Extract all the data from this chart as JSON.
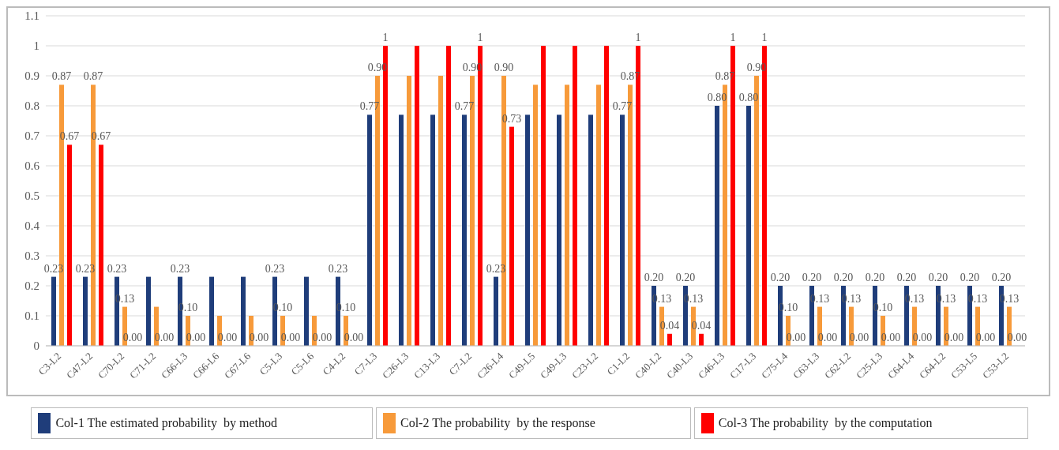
{
  "chart_data": {
    "type": "bar",
    "categories": [
      "C3-L2",
      "C47-L2",
      "C70-L2",
      "C71-L2",
      "C66-L3",
      "C66-L6",
      "C67-L6",
      "C5-L3",
      "C5-L6",
      "C4-L2",
      "C7-L3",
      "C26-L3",
      "C13-L3",
      "C7-L2",
      "C26-L4",
      "C49-L5",
      "C49-L3",
      "C23-L2",
      "C1-L2",
      "C40-L2",
      "C40-L3",
      "C46-L3",
      "C17-L3",
      "C75-L4",
      "C63-L3",
      "C62-L2",
      "C25-L3",
      "C64-L4",
      "C64-L2",
      "C53-L5",
      "C53-L2"
    ],
    "series": [
      {
        "name": "Col-1 The estimated probability  by method",
        "color": "#1f3d7a",
        "values": [
          0.23,
          0.23,
          0.23,
          0.23,
          0.23,
          0.23,
          0.23,
          0.23,
          0.23,
          0.23,
          0.77,
          0.77,
          0.77,
          0.77,
          0.23,
          0.77,
          0.77,
          0.77,
          0.77,
          0.2,
          0.2,
          0.8,
          0.8,
          0.2,
          0.2,
          0.2,
          0.2,
          0.2,
          0.2,
          0.2,
          0.2
        ],
        "value_labels": [
          "0.23",
          "0.23",
          "0.23",
          null,
          "0.23",
          null,
          null,
          "0.23",
          null,
          "0.23",
          "0.77",
          null,
          null,
          "0.77",
          "0.23",
          null,
          null,
          null,
          "0.77",
          "0.20",
          "0.20",
          "0.80",
          "0.80",
          "0.20",
          "0.20",
          "0.20",
          "0.20",
          "0.20",
          "0.20",
          "0.20",
          "0.20"
        ]
      },
      {
        "name": "Col-2 The probability  by the response",
        "color": "#f79a3a",
        "values": [
          0.87,
          0.87,
          0.13,
          0.13,
          0.1,
          0.1,
          0.1,
          0.1,
          0.1,
          0.1,
          0.9,
          0.9,
          0.9,
          0.9,
          0.9,
          0.87,
          0.87,
          0.87,
          0.87,
          0.13,
          0.13,
          0.87,
          0.9,
          0.1,
          0.13,
          0.13,
          0.1,
          0.13,
          0.13,
          0.13,
          0.13
        ],
        "value_labels": [
          "0.87",
          "0.87",
          "0.13",
          null,
          "0.10",
          null,
          null,
          "0.10",
          null,
          "0.10",
          "0.90",
          null,
          null,
          "0.90",
          "0.90",
          null,
          null,
          null,
          "0.87",
          "0.13",
          "0.13",
          "0.87",
          "0.90",
          "0.10",
          "0.13",
          "0.13",
          "0.10",
          "0.13",
          "0.13",
          "0.13",
          "0.13"
        ]
      },
      {
        "name": "Col-3 The probability  by the computation",
        "color": "#ff0000",
        "values": [
          0.67,
          0.67,
          0,
          0,
          0,
          0,
          0,
          0,
          0,
          0,
          1,
          1,
          1,
          1,
          0.73,
          1,
          1,
          1,
          1,
          0.04,
          0.04,
          1,
          1,
          0,
          0,
          0,
          0,
          0,
          0,
          0,
          0
        ],
        "value_labels": [
          "0.67",
          "0.67",
          "0.00",
          "0.00",
          "0.00",
          "0.00",
          "0.00",
          "0.00",
          "0.00",
          "0.00",
          "1",
          null,
          null,
          "1",
          "0.73",
          null,
          null,
          null,
          "1",
          "0.04",
          "0.04",
          "1",
          "1",
          "0.00",
          "0.00",
          "0.00",
          "0.00",
          "0.00",
          "0.00",
          "0.00",
          "0.00"
        ]
      }
    ],
    "ylim": [
      0,
      1.1
    ],
    "yticks": [
      0,
      0.1,
      0.2,
      0.3,
      0.4,
      0.5,
      0.6,
      0.7,
      0.8,
      0.9,
      1,
      1.1
    ],
    "grid": "y",
    "legend": "bottom"
  }
}
